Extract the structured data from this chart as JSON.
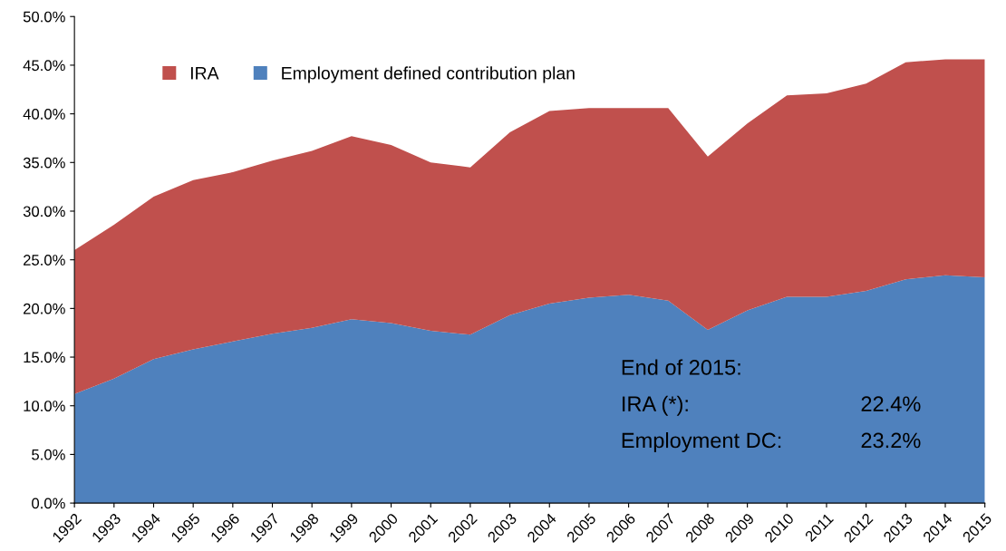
{
  "chart_data": {
    "type": "area",
    "stacked": true,
    "categories": [
      "1992",
      "1993",
      "1994",
      "1995",
      "1996",
      "1997",
      "1998",
      "1999",
      "2000",
      "2001",
      "2002",
      "2003",
      "2004",
      "2005",
      "2006",
      "2007",
      "2008",
      "2009",
      "2010",
      "2011",
      "2012",
      "2013",
      "2014",
      "2015"
    ],
    "series": [
      {
        "name": "Employment defined contribution plan",
        "color": "#4f81bd",
        "values": [
          11.2,
          12.8,
          14.8,
          15.8,
          16.6,
          17.4,
          18.0,
          18.9,
          18.5,
          17.7,
          17.3,
          19.3,
          20.5,
          21.1,
          21.4,
          20.8,
          17.8,
          19.8,
          21.2,
          21.2,
          21.8,
          23.0,
          23.4,
          23.2
        ]
      },
      {
        "name": "IRA",
        "color": "#c0504d",
        "values": [
          14.8,
          15.8,
          16.7,
          17.4,
          17.4,
          17.8,
          18.2,
          18.8,
          18.3,
          17.3,
          17.2,
          18.8,
          19.8,
          19.5,
          19.2,
          19.8,
          17.8,
          19.2,
          20.7,
          20.9,
          21.3,
          22.3,
          22.2,
          22.4
        ]
      }
    ],
    "ylim": [
      0,
      50
    ],
    "yticks": [
      {
        "value": 0,
        "label": "0.0%"
      },
      {
        "value": 5,
        "label": "5.0%"
      },
      {
        "value": 10,
        "label": "10.0%"
      },
      {
        "value": 15,
        "label": "15.0%"
      },
      {
        "value": 20,
        "label": "20.0%"
      },
      {
        "value": 25,
        "label": "25.0%"
      },
      {
        "value": 30,
        "label": "30.0%"
      },
      {
        "value": 35,
        "label": "35.0%"
      },
      {
        "value": 40,
        "label": "40.0%"
      },
      {
        "value": 45,
        "label": "45.0%"
      },
      {
        "value": 50,
        "label": "50.0%"
      }
    ],
    "annotations": [
      "End of 2015:",
      "IRA (*):",
      "22.4%",
      "Employment DC:",
      "23.2%"
    ],
    "legend": "top left",
    "grid": false
  }
}
